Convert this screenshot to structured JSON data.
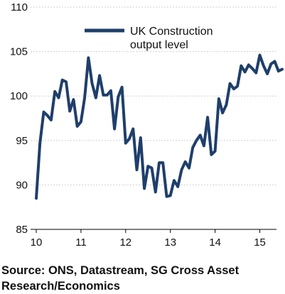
{
  "chart_data": {
    "type": "line",
    "title": "",
    "xlabel": "",
    "ylabel": "",
    "xlim": [
      10,
      15.5
    ],
    "ylim": [
      85,
      110
    ],
    "grid": true,
    "legend_position": "top-center",
    "x_ticks": [
      10,
      11,
      12,
      13,
      14,
      15
    ],
    "y_ticks": [
      85,
      90,
      95,
      100,
      105,
      110
    ],
    "series": [
      {
        "name": "UK Construction output level",
        "color": "#1f3f6b",
        "x": [
          10.0,
          10.083,
          10.167,
          10.25,
          10.333,
          10.417,
          10.5,
          10.583,
          10.667,
          10.75,
          10.833,
          10.917,
          11.0,
          11.083,
          11.167,
          11.25,
          11.333,
          11.417,
          11.5,
          11.583,
          11.667,
          11.75,
          11.833,
          11.917,
          12.0,
          12.083,
          12.167,
          12.25,
          12.333,
          12.417,
          12.5,
          12.583,
          12.667,
          12.75,
          12.833,
          12.917,
          13.0,
          13.083,
          13.167,
          13.25,
          13.333,
          13.417,
          13.5,
          13.583,
          13.667,
          13.75,
          13.833,
          13.917,
          14.0,
          14.083,
          14.167,
          14.25,
          14.333,
          14.417,
          14.5,
          14.583,
          14.667,
          14.75,
          14.833,
          14.917,
          15.0,
          15.083,
          15.167,
          15.25,
          15.333,
          15.417,
          15.5
        ],
        "y": [
          88.5,
          94.7,
          98.2,
          97.8,
          97.3,
          100.5,
          99.8,
          101.8,
          101.6,
          98.3,
          99.6,
          96.6,
          97.1,
          99.8,
          104.3,
          101.4,
          99.8,
          102.3,
          100.1,
          100.1,
          100.6,
          96.3,
          99.9,
          101.0,
          94.7,
          95.2,
          96.3,
          91.7,
          95.3,
          89.6,
          92.1,
          91.9,
          89.2,
          92.5,
          92.5,
          88.7,
          88.8,
          90.5,
          89.8,
          91.7,
          92.6,
          91.9,
          94.2,
          95.0,
          95.6,
          94.4,
          97.6,
          93.4,
          93.8,
          99.7,
          98.1,
          99.0,
          101.4,
          100.8,
          101.1,
          103.4,
          102.7,
          103.5,
          103.1,
          102.6,
          104.6,
          103.4,
          102.5,
          103.6,
          103.9,
          102.8,
          103.0
        ]
      }
    ]
  },
  "source_note": "Source: ONS, Datastream, SG Cross Asset Research/Economics"
}
